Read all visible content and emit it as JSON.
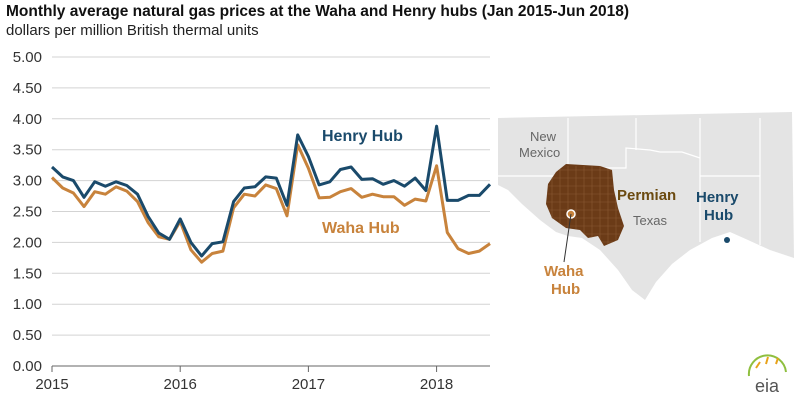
{
  "title": "Monthly average natural gas prices at the Waha and Henry hubs (Jan 2015-Jun 2018)",
  "subtitle": "dollars per million British thermal units",
  "chart_data": {
    "type": "line",
    "ylim": [
      0,
      5
    ],
    "y_ticks": [
      "0.00",
      "0.50",
      "1.00",
      "1.50",
      "2.00",
      "2.50",
      "3.00",
      "3.50",
      "4.00",
      "4.50",
      "5.00"
    ],
    "x_ticks": [
      "2015",
      "2016",
      "2017",
      "2018"
    ],
    "grid": "horizontal",
    "x_start": "Jan 2015",
    "series": [
      {
        "name": "Henry Hub",
        "color": "#1a4a6b",
        "values": [
          3.22,
          3.06,
          3.0,
          2.73,
          2.98,
          2.91,
          2.98,
          2.92,
          2.78,
          2.42,
          2.15,
          2.05,
          2.38,
          2.0,
          1.78,
          1.98,
          2.01,
          2.66,
          2.88,
          2.9,
          3.06,
          3.04,
          2.6,
          3.74,
          3.39,
          2.93,
          2.98,
          3.18,
          3.22,
          3.02,
          3.03,
          2.94,
          3.0,
          2.91,
          3.04,
          2.84,
          3.88,
          2.68,
          2.68,
          2.76,
          2.76,
          2.94
        ]
      },
      {
        "name": "Waha Hub",
        "color": "#c8833c",
        "values": [
          3.05,
          2.88,
          2.8,
          2.58,
          2.82,
          2.78,
          2.9,
          2.83,
          2.66,
          2.32,
          2.09,
          2.05,
          2.34,
          1.88,
          1.68,
          1.82,
          1.86,
          2.56,
          2.78,
          2.75,
          2.93,
          2.87,
          2.43,
          3.58,
          3.2,
          2.72,
          2.73,
          2.82,
          2.87,
          2.73,
          2.78,
          2.74,
          2.74,
          2.6,
          2.7,
          2.67,
          3.24,
          2.16,
          1.9,
          1.82,
          1.86,
          1.98
        ]
      }
    ]
  },
  "map": {
    "labels": {
      "new_mexico": [
        "New",
        "Mexico"
      ],
      "texas": "Texas",
      "permian": "Permian",
      "henry_hub": [
        "Henry",
        "Hub"
      ],
      "waha_hub": [
        "Waha",
        "Hub"
      ]
    },
    "colors": {
      "land": "#e4e4e4",
      "region": "#6b3b17",
      "henry": "#1a4a6b",
      "waha": "#c8833c"
    }
  },
  "logo": "eia"
}
